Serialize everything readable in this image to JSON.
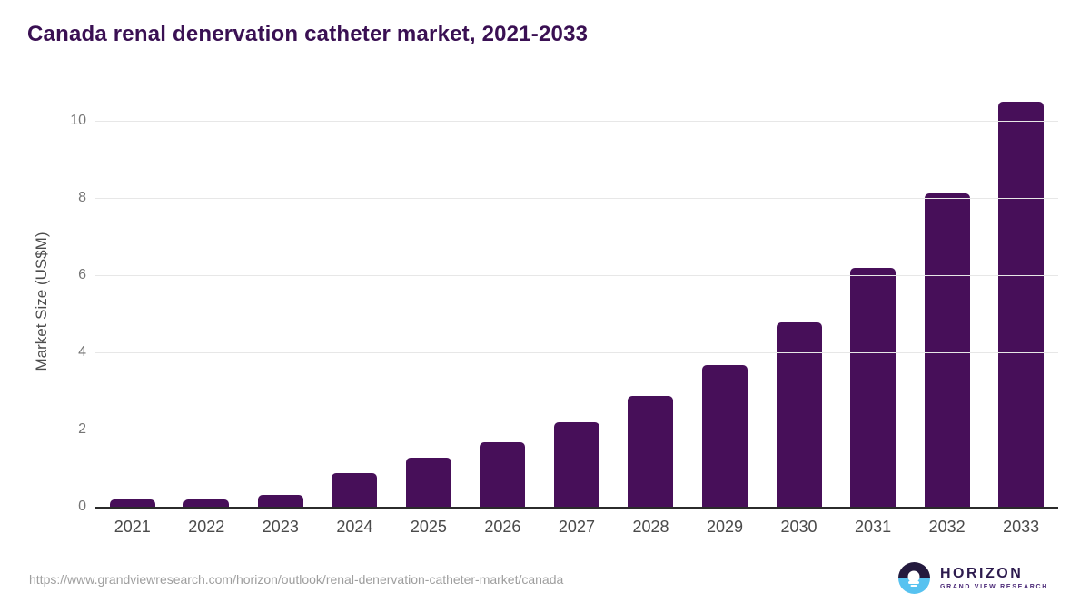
{
  "title": "Canada renal denervation catheter market, 2021-2033",
  "chart_data": {
    "type": "bar",
    "title": "Canada renal denervation catheter market, 2021-2033",
    "categories": [
      "2021",
      "2022",
      "2023",
      "2024",
      "2025",
      "2026",
      "2027",
      "2028",
      "2029",
      "2030",
      "2031",
      "2032",
      "2033"
    ],
    "values": [
      0.2,
      0.2,
      0.3,
      0.88,
      1.28,
      1.67,
      2.18,
      2.87,
      3.67,
      4.76,
      6.19,
      8.1,
      10.48
    ],
    "xlabel": "",
    "ylabel": "Market Size (US$M)",
    "ylim": [
      0,
      10.6
    ],
    "yticks": [
      0,
      2,
      4,
      6,
      8,
      10
    ],
    "grid": true,
    "legend": "none",
    "bar_color": "#470f59"
  },
  "footer": {
    "source_url": "https://www.grandviewresearch.com/horizon/outlook/renal-denervation-catheter-market/canada",
    "logo": {
      "name": "HORIZON",
      "subtitle": "GRAND VIEW RESEARCH"
    }
  },
  "colors": {
    "title_text": "#3a1053",
    "bar": "#470f59",
    "gridline": "#e7e7e7",
    "axis_line": "#2b2b2b",
    "x_tick_text": "#4a4a4a",
    "y_tick_text": "#757575",
    "url_text": "#9e9e9e",
    "logo_dark": "#241a3e",
    "logo_blue": "#57c2f0"
  }
}
